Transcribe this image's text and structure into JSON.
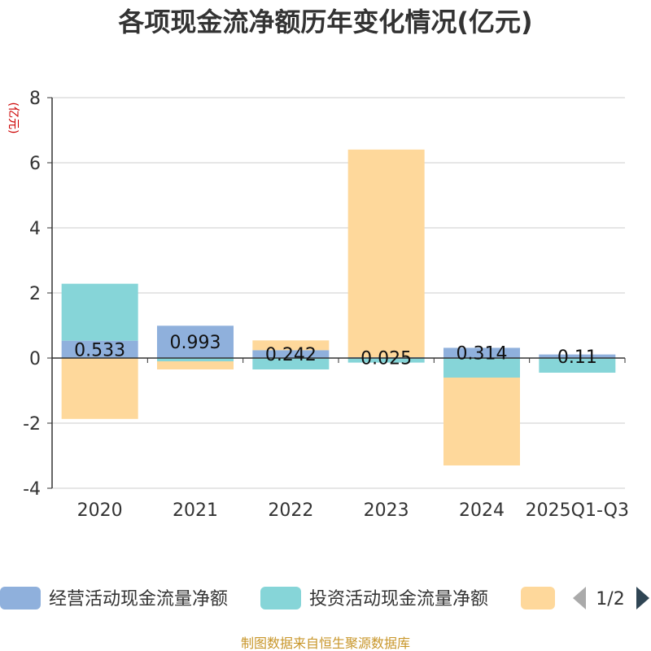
{
  "chart_data": {
    "type": "bar",
    "stacked": true,
    "title": "各项现金流净额历年变化情况(亿元)",
    "ylabel": "(亿元)",
    "xlabel": "",
    "categories": [
      "2020",
      "2021",
      "2022",
      "2023",
      "2024",
      "2025Q1-Q3"
    ],
    "ylim": [
      -4,
      8
    ],
    "yticks": [
      -4,
      -2,
      0,
      2,
      4,
      6,
      8
    ],
    "grid": true,
    "series": [
      {
        "name": "经营活动现金流量净额",
        "color": "#8fb0dc",
        "values": [
          0.533,
          0.993,
          0.242,
          0.025,
          0.314,
          0.11
        ],
        "labels": [
          "0.533",
          "0.993",
          "0.242",
          "0.025",
          "0.314",
          "0.11"
        ]
      },
      {
        "name": "投资活动现金流量净额",
        "color": "#86d5d8",
        "values": [
          1.75,
          -0.1,
          -0.35,
          -0.14,
          -0.6,
          -0.45
        ]
      },
      {
        "name": "",
        "color": "#fed89b",
        "values": [
          -1.87,
          -0.25,
          0.3,
          6.38,
          -2.7,
          0.0
        ]
      }
    ],
    "legend": {
      "placement": "bottom",
      "page": "1/2"
    }
  },
  "source": "制图数据来自恒生聚源数据库"
}
